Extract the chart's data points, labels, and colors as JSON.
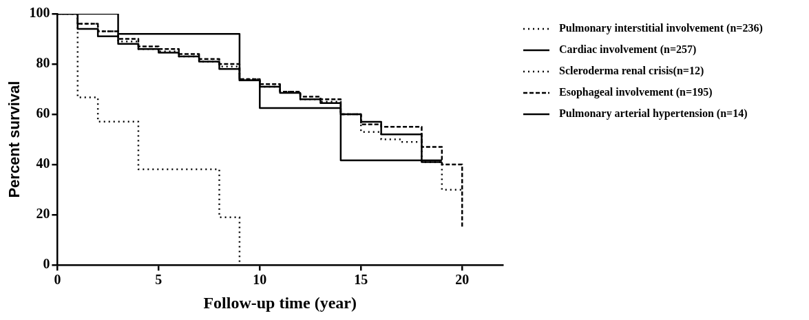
{
  "chart_data": {
    "type": "step",
    "xlabel": "Follow-up time (year)",
    "ylabel": "Percent survival",
    "xlim": [
      0,
      22
    ],
    "xticks": [
      0,
      5,
      10,
      15,
      20
    ],
    "ylim": [
      0,
      100
    ],
    "yticks": [
      0,
      20,
      40,
      60,
      80,
      100
    ],
    "grid": false,
    "legend": "top right",
    "marker": "none",
    "series": [
      {
        "name": "Pulmonary interstitial involvement (n=236)",
        "color": "#000000",
        "line_style": "dotted",
        "x": [
          0,
          1,
          2,
          3,
          4,
          5,
          6,
          7,
          8,
          9,
          10,
          11,
          12,
          13,
          14,
          15,
          16,
          17,
          18,
          19,
          20
        ],
        "values": [
          100,
          96,
          93,
          89,
          86,
          85,
          83,
          81,
          79,
          74,
          71,
          69,
          66,
          65,
          60,
          53,
          50,
          49,
          41,
          30,
          30
        ]
      },
      {
        "name": "Cardiac involvement (n=257)",
        "color": "#000000",
        "line_style": "solid",
        "x": [
          0,
          1,
          2,
          3,
          4,
          5,
          6,
          7,
          8,
          9,
          10,
          11,
          12,
          13,
          14,
          15,
          16,
          17,
          18,
          19
        ],
        "values": [
          100,
          94,
          91,
          88,
          86,
          84.5,
          83,
          81,
          78,
          73.5,
          71,
          68.5,
          66,
          64.5,
          60,
          57,
          52,
          52,
          41,
          41
        ]
      },
      {
        "name": "Scleroderma renal crisis(n=12)",
        "color": "#000000",
        "line_style": "dotted",
        "x": [
          0,
          1,
          2,
          4,
          8,
          9
        ],
        "values": [
          100,
          66.7,
          57.1,
          38.1,
          19,
          0
        ]
      },
      {
        "name": "Esophageal involvement (n=195)",
        "color": "#000000",
        "line_style": "dashed",
        "x": [
          0,
          1,
          2,
          3,
          4,
          5,
          6,
          7,
          8,
          9,
          10,
          11,
          12,
          13,
          14,
          15,
          16,
          17,
          18,
          19,
          20
        ],
        "values": [
          100,
          96,
          93,
          90,
          87,
          86,
          84,
          82,
          80,
          74,
          72,
          69,
          67,
          66,
          60,
          56,
          55,
          55,
          47,
          40,
          15
        ]
      },
      {
        "name": "Pulmonary arterial hypertension (n=14)",
        "color": "#000000",
        "line_style": "solid",
        "x": [
          0,
          3,
          9,
          10,
          14,
          19
        ],
        "values": [
          100,
          92,
          73.5,
          62.5,
          41.7,
          41.7
        ]
      }
    ]
  }
}
